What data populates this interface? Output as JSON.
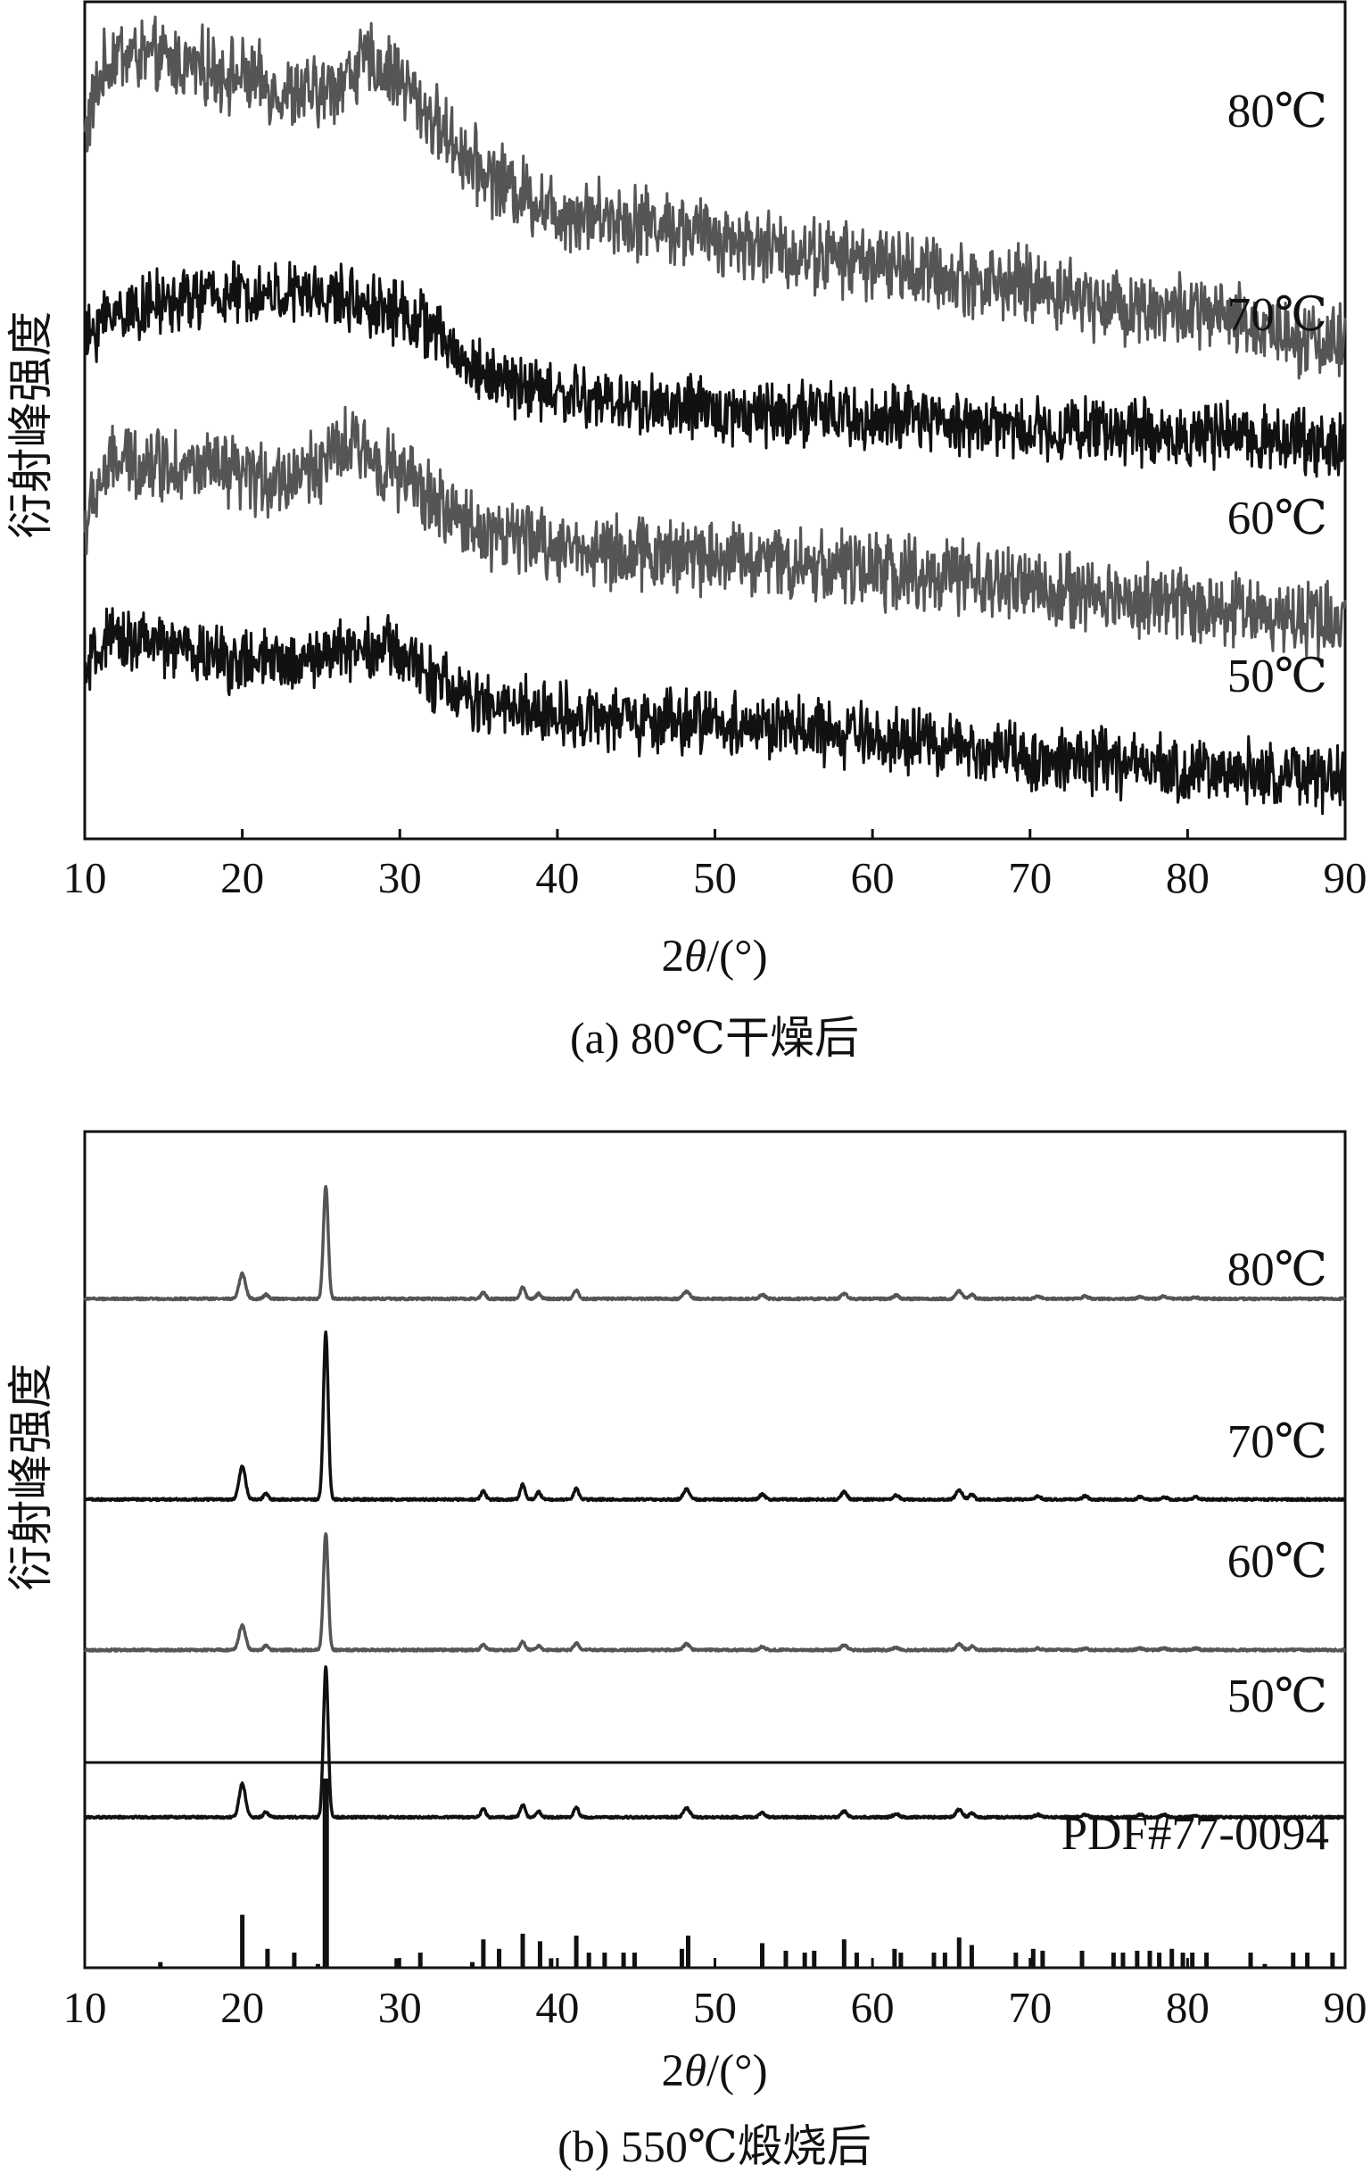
{
  "chart_data": [
    {
      "type": "line",
      "panel": "a",
      "caption": "(a) 80℃干燥后",
      "ylabel": "衍射峰强度",
      "xlabel_prefix": "2",
      "xlabel_symbol": "θ",
      "xlabel_suffix": "/(°)",
      "xlim": [
        10,
        90
      ],
      "x_ticks": [
        10,
        20,
        30,
        40,
        50,
        60,
        70,
        80,
        90
      ],
      "y_tick_labels": false,
      "grid": false,
      "colors": {
        "gray": "#555555",
        "black": "#111111"
      },
      "series": [
        {
          "name": "80℃",
          "color": "#555555",
          "noise": 0.035,
          "x": [
            10,
            11,
            12,
            15,
            18,
            20,
            23,
            25,
            28,
            30,
            32,
            35,
            40,
            45,
            50,
            55,
            60,
            65,
            70,
            75,
            80,
            85,
            90
          ],
          "y": [
            0.84,
            0.91,
            0.94,
            0.93,
            0.92,
            0.91,
            0.89,
            0.89,
            0.93,
            0.91,
            0.86,
            0.8,
            0.75,
            0.74,
            0.72,
            0.7,
            0.69,
            0.67,
            0.66,
            0.64,
            0.63,
            0.61,
            0.59
          ]
        },
        {
          "name": "70℃",
          "color": "#111111",
          "noise": 0.03,
          "x": [
            10,
            11,
            12,
            15,
            18,
            20,
            23,
            25,
            28,
            30,
            32,
            34,
            36,
            40,
            45,
            50,
            55,
            60,
            65,
            70,
            75,
            80,
            85,
            90
          ],
          "y": [
            0.59,
            0.62,
            0.63,
            0.64,
            0.65,
            0.65,
            0.65,
            0.65,
            0.64,
            0.63,
            0.61,
            0.57,
            0.55,
            0.53,
            0.52,
            0.51,
            0.51,
            0.5,
            0.5,
            0.49,
            0.49,
            0.48,
            0.48,
            0.47
          ]
        },
        {
          "name": "60℃",
          "color": "#555555",
          "noise": 0.035,
          "x": [
            10,
            11,
            12,
            15,
            18,
            20,
            23,
            25,
            27,
            29,
            31,
            33,
            35,
            40,
            45,
            50,
            55,
            60,
            65,
            70,
            75,
            80,
            85,
            90
          ],
          "y": [
            0.37,
            0.43,
            0.45,
            0.45,
            0.44,
            0.43,
            0.43,
            0.45,
            0.47,
            0.45,
            0.42,
            0.39,
            0.37,
            0.35,
            0.34,
            0.34,
            0.33,
            0.32,
            0.31,
            0.3,
            0.29,
            0.28,
            0.27,
            0.26
          ]
        },
        {
          "name": "50℃",
          "color": "#111111",
          "noise": 0.03,
          "x": [
            10,
            11,
            13,
            15,
            18,
            20,
            23,
            25,
            27,
            29,
            31,
            33,
            35,
            40,
            45,
            50,
            55,
            60,
            65,
            70,
            75,
            80,
            85,
            90
          ],
          "y": [
            0.19,
            0.23,
            0.24,
            0.23,
            0.22,
            0.21,
            0.21,
            0.22,
            0.23,
            0.23,
            0.21,
            0.18,
            0.16,
            0.15,
            0.14,
            0.14,
            0.13,
            0.12,
            0.11,
            0.1,
            0.09,
            0.08,
            0.08,
            0.07
          ]
        }
      ]
    },
    {
      "type": "line",
      "panel": "b",
      "caption": "(b) 550℃煅烧后",
      "ylabel": "衍射峰强度",
      "xlabel_prefix": "2",
      "xlabel_symbol": "θ",
      "xlabel_suffix": "/(°)",
      "xlim": [
        10,
        90
      ],
      "x_ticks": [
        10,
        20,
        30,
        40,
        50,
        60,
        70,
        80,
        90
      ],
      "y_tick_labels": false,
      "grid": false,
      "peaks": [
        {
          "x": 20.0,
          "w": 0.2
        },
        {
          "x": 21.5,
          "w": 0.15
        },
        {
          "x": 25.3,
          "w": 0.15
        },
        {
          "x": 35.3,
          "w": 0.15
        },
        {
          "x": 37.8,
          "w": 0.15
        },
        {
          "x": 38.8,
          "w": 0.15
        },
        {
          "x": 41.2,
          "w": 0.15
        },
        {
          "x": 48.2,
          "w": 0.2
        },
        {
          "x": 53.0,
          "w": 0.18
        },
        {
          "x": 58.2,
          "w": 0.18
        },
        {
          "x": 61.5,
          "w": 0.18
        },
        {
          "x": 65.5,
          "w": 0.2
        },
        {
          "x": 66.3,
          "w": 0.15
        },
        {
          "x": 70.5,
          "w": 0.18
        },
        {
          "x": 73.5,
          "w": 0.18
        },
        {
          "x": 77.0,
          "w": 0.18
        },
        {
          "x": 78.5,
          "w": 0.18
        },
        {
          "x": 80.5,
          "w": 0.18
        }
      ],
      "series": [
        {
          "name": "80℃",
          "color": "#555555",
          "baseline": 0.8,
          "peak_heights": [
            0.03,
            0.005,
            0.135,
            0.008,
            0.014,
            0.006,
            0.01,
            0.009,
            0.005,
            0.006,
            0.004,
            0.009,
            0.005,
            0.003,
            0.003,
            0.002,
            0.003,
            0.002
          ]
        },
        {
          "name": "70℃",
          "color": "#111111",
          "baseline": 0.56,
          "peak_heights": [
            0.04,
            0.007,
            0.2,
            0.01,
            0.018,
            0.009,
            0.013,
            0.012,
            0.006,
            0.009,
            0.005,
            0.011,
            0.006,
            0.004,
            0.004,
            0.003,
            0.003,
            0.003
          ]
        },
        {
          "name": "60℃",
          "color": "#555555",
          "baseline": 0.38,
          "peak_heights": [
            0.03,
            0.005,
            0.14,
            0.006,
            0.01,
            0.005,
            0.008,
            0.007,
            0.004,
            0.006,
            0.003,
            0.007,
            0.004,
            0.002,
            0.002,
            0.002,
            0.002,
            0.002
          ]
        },
        {
          "name": "50℃",
          "color": "#111111",
          "baseline": 0.18,
          "peak_heights": [
            0.04,
            0.006,
            0.18,
            0.01,
            0.015,
            0.007,
            0.012,
            0.011,
            0.005,
            0.007,
            0.004,
            0.009,
            0.005,
            0.003,
            0.003,
            0.003,
            0.003,
            0.002
          ]
        }
      ],
      "reference": {
        "name": "PDF#77-0094",
        "color": "#111111",
        "sticks": [
          {
            "x": 14.8,
            "h": 0.03
          },
          {
            "x": 20.0,
            "h": 0.28
          },
          {
            "x": 21.6,
            "h": 0.1
          },
          {
            "x": 23.3,
            "h": 0.08
          },
          {
            "x": 24.8,
            "h": 0.02
          },
          {
            "x": 25.3,
            "h": 1.0
          },
          {
            "x": 29.8,
            "h": 0.05
          },
          {
            "x": 31.3,
            "h": 0.08
          },
          {
            "x": 34.6,
            "h": 0.03
          },
          {
            "x": 35.3,
            "h": 0.15
          },
          {
            "x": 36.3,
            "h": 0.1
          },
          {
            "x": 37.8,
            "h": 0.18
          },
          {
            "x": 38.9,
            "h": 0.14
          },
          {
            "x": 39.6,
            "h": 0.05
          },
          {
            "x": 41.2,
            "h": 0.17
          },
          {
            "x": 42.0,
            "h": 0.08
          },
          {
            "x": 43.0,
            "h": 0.08
          },
          {
            "x": 44.2,
            "h": 0.08
          },
          {
            "x": 44.9,
            "h": 0.08
          },
          {
            "x": 47.9,
            "h": 0.1
          },
          {
            "x": 48.3,
            "h": 0.17
          },
          {
            "x": 53.0,
            "h": 0.13
          },
          {
            "x": 54.5,
            "h": 0.09
          },
          {
            "x": 55.7,
            "h": 0.08
          },
          {
            "x": 56.3,
            "h": 0.09
          },
          {
            "x": 58.2,
            "h": 0.15
          },
          {
            "x": 59.0,
            "h": 0.08
          },
          {
            "x": 61.4,
            "h": 0.1
          },
          {
            "x": 61.8,
            "h": 0.08
          },
          {
            "x": 63.9,
            "h": 0.08
          },
          {
            "x": 64.6,
            "h": 0.08
          },
          {
            "x": 65.5,
            "h": 0.16
          },
          {
            "x": 66.3,
            "h": 0.12
          },
          {
            "x": 69.1,
            "h": 0.08
          },
          {
            "x": 70.2,
            "h": 0.1
          },
          {
            "x": 70.8,
            "h": 0.09
          },
          {
            "x": 73.3,
            "h": 0.09
          },
          {
            "x": 75.3,
            "h": 0.08
          },
          {
            "x": 75.9,
            "h": 0.08
          },
          {
            "x": 76.8,
            "h": 0.09
          },
          {
            "x": 77.6,
            "h": 0.09
          },
          {
            "x": 78.2,
            "h": 0.08
          },
          {
            "x": 79.0,
            "h": 0.1
          },
          {
            "x": 79.7,
            "h": 0.08
          },
          {
            "x": 80.3,
            "h": 0.08
          },
          {
            "x": 81.2,
            "h": 0.08
          },
          {
            "x": 84.0,
            "h": 0.08
          },
          {
            "x": 84.9,
            "h": 0.02
          },
          {
            "x": 86.7,
            "h": 0.08
          },
          {
            "x": 87.6,
            "h": 0.08
          },
          {
            "x": 89.2,
            "h": 0.08
          }
        ]
      }
    }
  ]
}
